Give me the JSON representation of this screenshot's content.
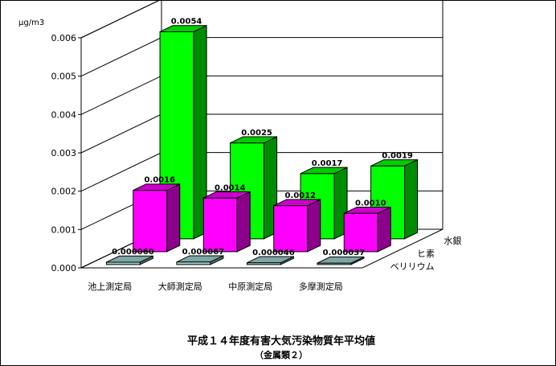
{
  "chart_data": {
    "type": "bar",
    "title": "平成１４年度有害大気汚染物質年平均値",
    "subtitle": "（金属類２）",
    "ylabel": "μg/m3",
    "ylim": [
      0,
      0.006
    ],
    "yticks": [
      "0.000",
      "0.001",
      "0.002",
      "0.003",
      "0.004",
      "0.005",
      "0.006"
    ],
    "categories": [
      "池上測定局",
      "大師測定局",
      "中原測定局",
      "多摩測定局"
    ],
    "series": [
      {
        "name": "ベリリウム",
        "values": [
          6e-05,
          6.7e-05,
          4.6e-05,
          3.7e-05
        ],
        "labels": [
          "0.000060",
          "0.000067",
          "0.000046",
          "0.000037"
        ],
        "color": "#9ccfce"
      },
      {
        "name": "ヒ素",
        "values": [
          0.0016,
          0.0014,
          0.0012,
          0.001
        ],
        "labels": [
          "0.0016",
          "0.0014",
          "0.0012",
          "0.0010"
        ],
        "color": "#ff00ff"
      },
      {
        "name": "水銀",
        "values": [
          0.0054,
          0.0025,
          0.0017,
          0.0019
        ],
        "labels": [
          "0.0054",
          "0.0025",
          "0.0017",
          "0.0019"
        ],
        "color": "#00ff00"
      }
    ],
    "grid": true
  }
}
